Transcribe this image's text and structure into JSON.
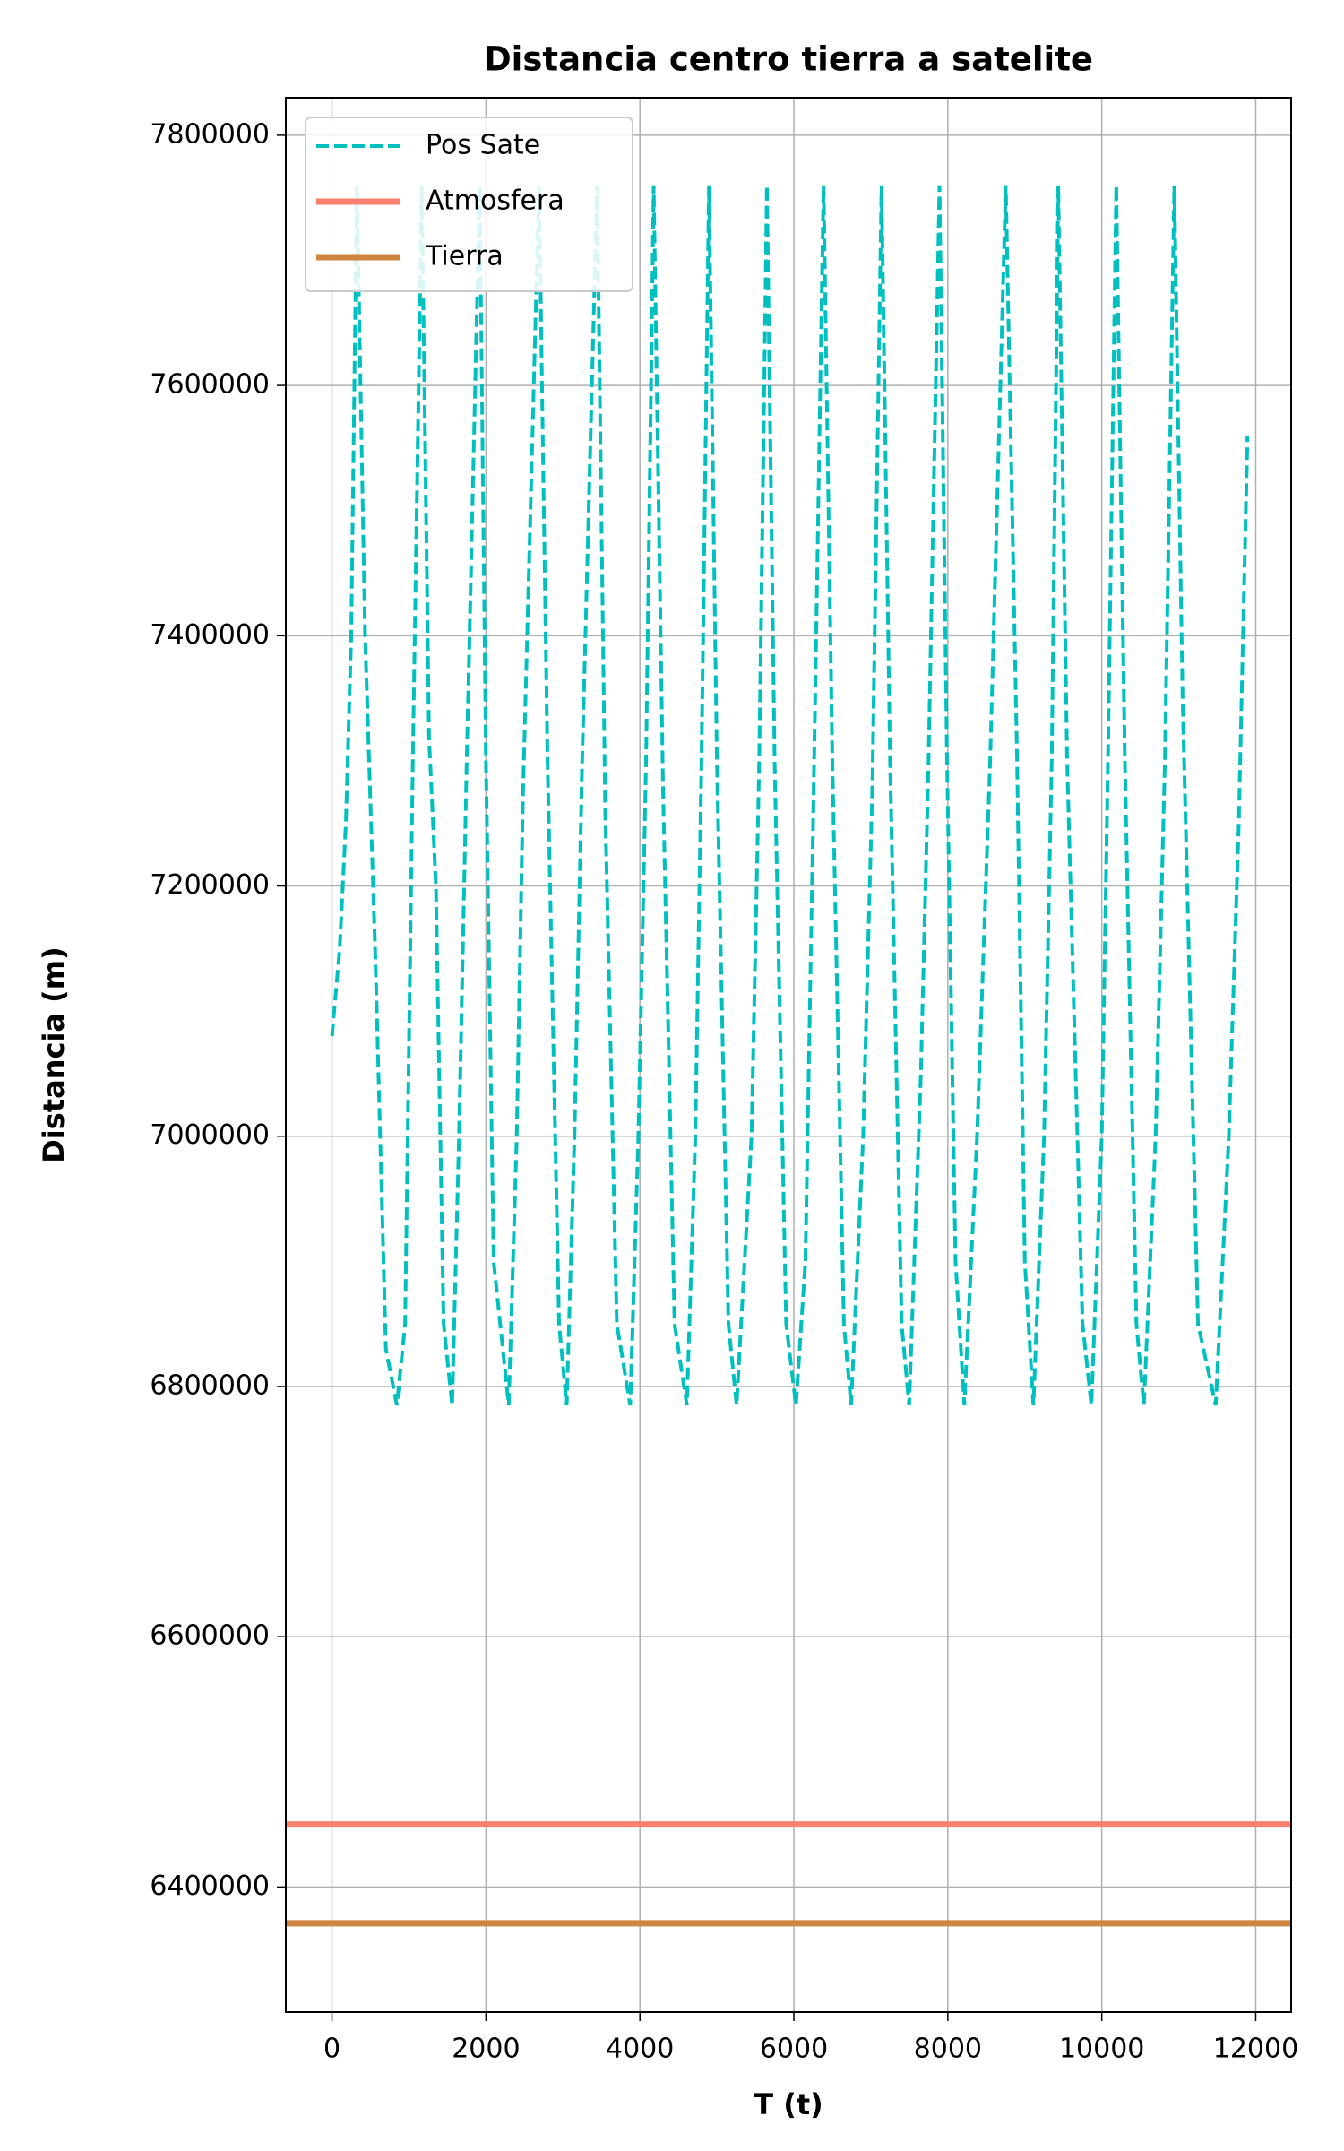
{
  "chart_data": {
    "type": "line",
    "title": "Distancia centro tierra a satelite",
    "xlabel": "T (t)",
    "ylabel": "Distancia (m)",
    "xlim": [
      -600,
      12460
    ],
    "ylim": [
      6300000,
      7830000
    ],
    "xticks": [
      0,
      2000,
      4000,
      6000,
      8000,
      10000,
      12000
    ],
    "yticks": [
      6400000,
      6600000,
      6800000,
      7000000,
      7200000,
      7400000,
      7600000,
      7800000
    ],
    "grid": true,
    "legend": "upper left",
    "series": [
      {
        "name": "Pos Sate",
        "color": "#00bfbf",
        "dashed": true,
        "x": [
          0,
          100,
          180,
          250,
          323,
          430,
          560,
          700,
          843,
          950,
          1050,
          1166,
          1260,
          1350,
          1450,
          1561,
          1650,
          1750,
          1919,
          2000,
          2100,
          2296,
          2400,
          2480,
          2690,
          2800,
          2950,
          3049,
          3150,
          3250,
          3444,
          3550,
          3700,
          3874,
          3980,
          4080,
          4179,
          4300,
          4450,
          4610,
          4720,
          4800,
          4897,
          5000,
          5150,
          5256,
          5450,
          5550,
          5650,
          5750,
          5900,
          6027,
          6150,
          6250,
          6386,
          6500,
          6650,
          6744,
          6900,
          7020,
          7139,
          7250,
          7400,
          7498,
          7650,
          7750,
          7892,
          7990,
          8100,
          8215,
          8380,
          8550,
          8753,
          8900,
          9000,
          9112,
          9250,
          9350,
          9435,
          9550,
          9750,
          9865,
          10000,
          10080,
          10188,
          10300,
          10450,
          10547,
          10700,
          10820,
          10942,
          11050,
          11250,
          11480,
          11650,
          11780,
          11893
        ],
        "values": [
          7080000,
          7150000,
          7250000,
          7400000,
          7760000,
          7400000,
          7150000,
          6830000,
          6785000,
          6850000,
          7300000,
          7760000,
          7320000,
          7200000,
          6850000,
          6785000,
          7000000,
          7300000,
          7760000,
          7300000,
          6900000,
          6785000,
          7000000,
          7270000,
          7760000,
          7300000,
          6850000,
          6785000,
          7000000,
          7300000,
          7760000,
          7260000,
          6850000,
          6785000,
          7000000,
          7300000,
          7760000,
          7280000,
          6850000,
          6785000,
          7000000,
          7300000,
          7760000,
          7300000,
          6850000,
          6785000,
          7000000,
          7300000,
          7760000,
          7300000,
          6850000,
          6785000,
          6900000,
          7250000,
          7760000,
          7300000,
          6850000,
          6785000,
          7000000,
          7280000,
          7760000,
          7300000,
          6850000,
          6785000,
          7050000,
          7300000,
          7760000,
          7300000,
          6900000,
          6785000,
          7000000,
          7300000,
          7760000,
          7300000,
          6900000,
          6785000,
          7000000,
          7300000,
          7760000,
          7300000,
          6850000,
          6785000,
          7000000,
          7300000,
          7760000,
          7300000,
          6850000,
          6785000,
          7000000,
          7300000,
          7760000,
          7350000,
          6850000,
          6785000,
          7000000,
          7250000,
          7560000
        ]
      }
    ],
    "hlines": [
      {
        "name": "Atmosfera",
        "color": "#fa8072",
        "value": 6450000
      },
      {
        "name": "Tierra",
        "color": "#cd853f",
        "value": 6371000
      }
    ]
  }
}
